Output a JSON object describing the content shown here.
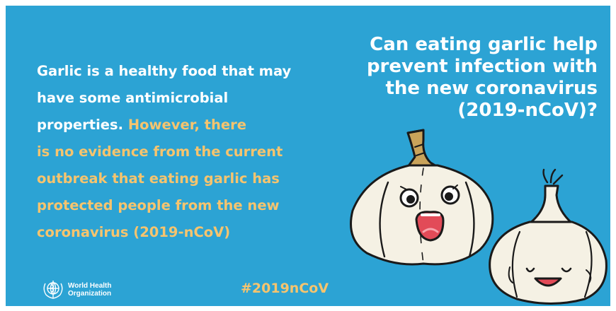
{
  "question": "Can eating garlic help prevent infection with the new coronavirus (2019-nCoV)?",
  "question_lines": [
    "Can eating garlic help",
    "prevent infection with",
    "the new coronavirus",
    "(2019-nCoV)?"
  ],
  "body": {
    "white_lines": [
      "Garlic is a healthy food that may",
      "have some antimicrobial",
      "properties."
    ],
    "highlight_lines": [
      "However, there",
      "is no evidence from the current",
      "outbreak that eating garlic has",
      "protected people from the new",
      "coronavirus (2019-nCoV)"
    ]
  },
  "hashtag": "#2019nCoV",
  "logo": {
    "name_line1": "World Health",
    "name_line2": "Organization",
    "icon": "who-emblem-icon"
  },
  "illustration": {
    "icon": "garlic-characters-illustration"
  },
  "colors": {
    "background": "#2ca3d4",
    "highlight": "#f6c46e",
    "text": "#ffffff"
  }
}
